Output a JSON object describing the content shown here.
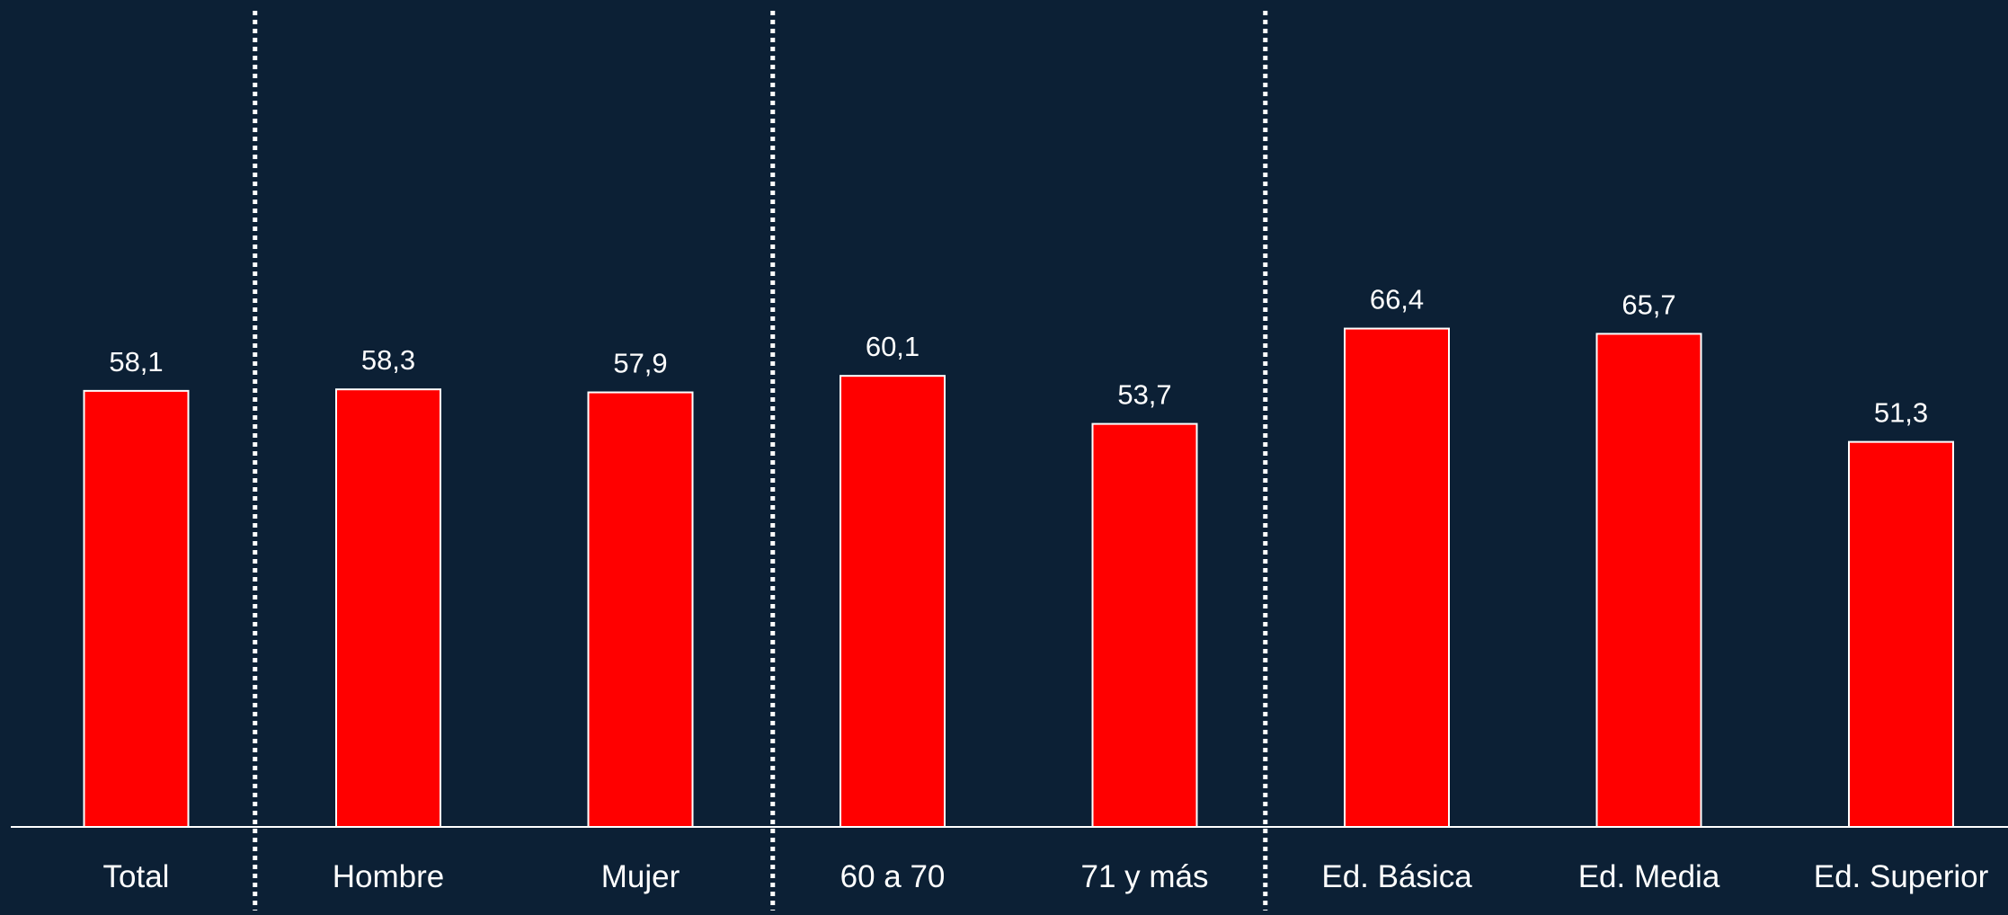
{
  "colors": {
    "background": "#0c2035",
    "bar_fill": "#ff0000",
    "bar_stroke": "#ffffff",
    "axis": "#ffffff",
    "text": "#ffffff",
    "divider": "#ffffff"
  },
  "chart_data": {
    "type": "bar",
    "title": "",
    "xlabel": "",
    "ylabel": "",
    "categories": [
      "Total",
      "Hombre",
      "Mujer",
      "60 a 70",
      "71 y más",
      "Ed. Básica",
      "Ed. Media",
      "Ed. Superior"
    ],
    "values": [
      58.1,
      58.3,
      57.9,
      60.1,
      53.7,
      66.4,
      65.7,
      51.3
    ],
    "data_labels": [
      "58,1",
      "58,3",
      "57,9",
      "60,1",
      "53,7",
      "66,4",
      "65,7",
      "51,3"
    ],
    "ylim": [
      0,
      110
    ],
    "grid": false,
    "legend": "none",
    "group_dividers_after_index": [
      0,
      2,
      4
    ],
    "divider_style": "dotted"
  }
}
